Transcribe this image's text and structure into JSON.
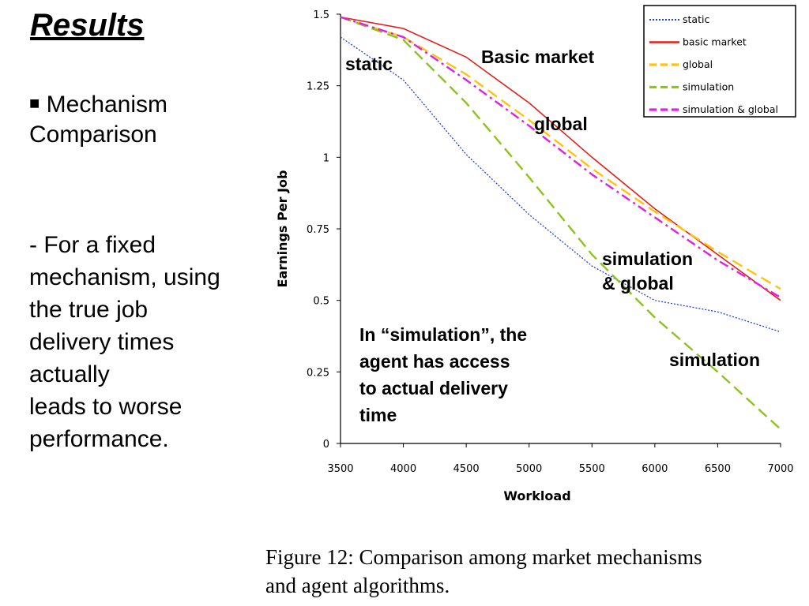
{
  "slide": {
    "title": "Results",
    "bullet_symbol": "■",
    "bullet_lines": [
      "Mechanism",
      "Comparison"
    ],
    "body_lines": [
      "- For a fixed",
      "mechanism, using",
      "the true job",
      "delivery times",
      "actually",
      "leads to worse",
      "performance."
    ],
    "caption_lines": [
      "Figure 12: Comparison among market mechanisms",
      "and agent algorithms."
    ]
  },
  "chart_data": {
    "type": "line",
    "xlabel": "Workload",
    "ylabel": "Earnings Per Job",
    "xlim": [
      3500,
      7000
    ],
    "ylim": [
      0,
      1.5
    ],
    "xticks": [
      "3500",
      "4000",
      "4500",
      "5000",
      "5500",
      "6000",
      "6500",
      "7000"
    ],
    "yticks": [
      "0",
      "0.25",
      "0.5",
      "0.75",
      "1",
      "1.25",
      "1.5"
    ],
    "x": [
      3500,
      4000,
      4500,
      5000,
      5500,
      6000,
      6500,
      7000
    ],
    "legend_position": "top-right",
    "series": [
      {
        "name": "static",
        "color": "#1f3fd6",
        "dash": "dotted",
        "values": [
          1.42,
          1.27,
          1.01,
          0.8,
          0.62,
          0.5,
          0.46,
          0.39
        ]
      },
      {
        "name": "basic market",
        "color": "#e0201a",
        "dash": "solid",
        "values": [
          1.49,
          1.45,
          1.35,
          1.19,
          1.0,
          0.82,
          0.66,
          0.5
        ]
      },
      {
        "name": "global",
        "color": "#ffc20e",
        "dash": "dashed",
        "values": [
          1.49,
          1.42,
          1.29,
          1.13,
          0.96,
          0.81,
          0.67,
          0.54
        ]
      },
      {
        "name": "simulation",
        "color": "#8dc21f",
        "dash": "dashed",
        "values": [
          1.49,
          1.41,
          1.19,
          0.93,
          0.66,
          0.44,
          0.25,
          0.05
        ]
      },
      {
        "name": "simulation & global",
        "color": "#e020e0",
        "dash": "dashdot",
        "values": [
          1.49,
          1.42,
          1.27,
          1.11,
          0.94,
          0.79,
          0.64,
          0.51
        ]
      }
    ],
    "annotations": {
      "static": "static",
      "basic_market": "Basic market",
      "global": "global",
      "sim_global_line1": "simulation",
      "sim_global_line2": "& global",
      "simulation": "simulation",
      "note_lines": [
        "In “simulation”, the",
        "agent has access",
        "to actual delivery",
        "time"
      ]
    }
  }
}
